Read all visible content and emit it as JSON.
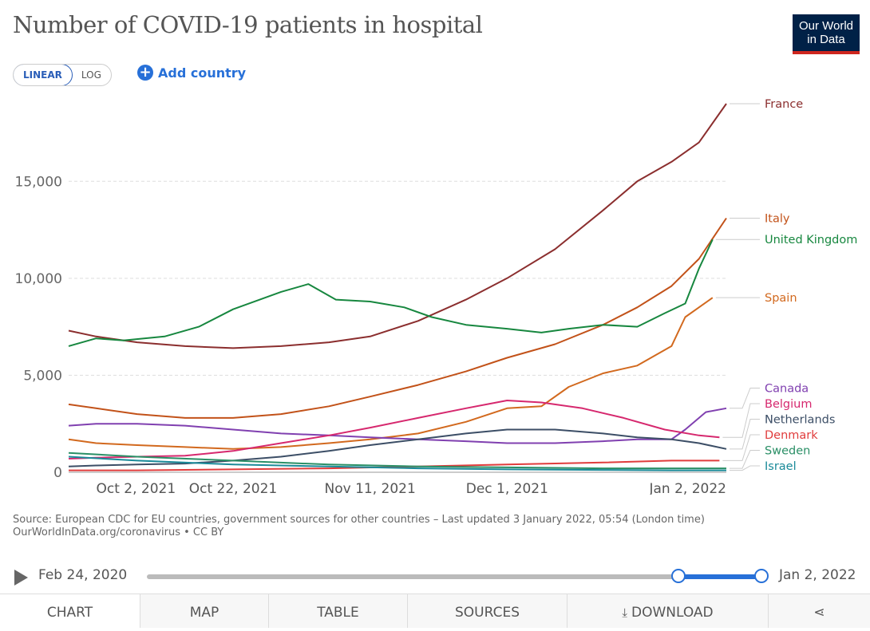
{
  "header": {
    "title": "Number of COVID-19 patients in hospital",
    "logo_line1": "Our World",
    "logo_line2": "in Data"
  },
  "controls": {
    "linear_label": "LINEAR",
    "log_label": "LOG",
    "add_country_label": "Add country"
  },
  "footer": {
    "source_line1": "Source: European CDC for EU countries, government sources for other countries – Last updated 3 January 2022, 05:54 (London time)",
    "source_line2": "OurWorldInData.org/coronavirus • CC BY"
  },
  "timeline": {
    "start_label": "Feb 24, 2020",
    "end_label": "Jan 2, 2022",
    "selection_start_fraction": 0.87,
    "selection_end_fraction": 1.0
  },
  "tabs": [
    "CHART",
    "MAP",
    "TABLE",
    "SOURCES",
    "DOWNLOAD"
  ],
  "icons": {
    "share": "share-icon",
    "download": "download-icon",
    "play": "play-icon"
  },
  "colors": {
    "accent": "#2770d8",
    "logo_bg": "#002147",
    "logo_bar": "#ce261e"
  },
  "chart_data": {
    "type": "line",
    "y_ticks": [
      0,
      5000,
      10000,
      15000
    ],
    "y_tick_labels": [
      "0",
      "5,000",
      "10,000",
      "15,000"
    ],
    "x_ticks": [
      "2021-10-02",
      "2021-10-22",
      "2021-11-11",
      "2021-12-01",
      "2022-01-02"
    ],
    "x_tick_labels": [
      "Oct 2, 2021",
      "Oct 22, 2021",
      "Nov 11, 2021",
      "Dec 1, 2021",
      "Jan 2, 2022"
    ],
    "x_range": [
      "2021-09-28",
      "2022-01-02"
    ],
    "ylim": [
      0,
      19000
    ],
    "grid": true,
    "legend": "right",
    "series": [
      {
        "name": "France",
        "color": "#8b2e2e",
        "end_value": 19000,
        "dates": [
          "2021-09-28",
          "2021-10-02",
          "2021-10-08",
          "2021-10-15",
          "2021-10-22",
          "2021-10-29",
          "2021-11-05",
          "2021-11-11",
          "2021-11-18",
          "2021-11-25",
          "2021-12-01",
          "2021-12-08",
          "2021-12-15",
          "2021-12-20",
          "2021-12-25",
          "2021-12-29",
          "2022-01-02"
        ],
        "values": [
          7300,
          7000,
          6700,
          6500,
          6400,
          6500,
          6700,
          7000,
          7800,
          8900,
          10000,
          11500,
          13500,
          15000,
          16000,
          17000,
          19000
        ]
      },
      {
        "name": "Italy",
        "color": "#c25219",
        "end_value": 13100,
        "dates": [
          "2021-09-28",
          "2021-10-02",
          "2021-10-08",
          "2021-10-15",
          "2021-10-22",
          "2021-10-29",
          "2021-11-05",
          "2021-11-11",
          "2021-11-18",
          "2021-11-25",
          "2021-12-01",
          "2021-12-08",
          "2021-12-15",
          "2021-12-20",
          "2021-12-25",
          "2021-12-29",
          "2022-01-02"
        ],
        "values": [
          3500,
          3300,
          3000,
          2800,
          2800,
          3000,
          3400,
          3900,
          4500,
          5200,
          5900,
          6600,
          7600,
          8500,
          9600,
          11000,
          13100
        ]
      },
      {
        "name": "United Kingdom",
        "color": "#17873f",
        "end_value": 12000,
        "dates": [
          "2021-09-28",
          "2021-10-02",
          "2021-10-06",
          "2021-10-12",
          "2021-10-17",
          "2021-10-22",
          "2021-10-29",
          "2021-11-02",
          "2021-11-06",
          "2021-11-11",
          "2021-11-16",
          "2021-11-20",
          "2021-11-25",
          "2021-12-01",
          "2021-12-06",
          "2021-12-10",
          "2021-12-15",
          "2021-12-20",
          "2021-12-24",
          "2021-12-27",
          "2021-12-29",
          "2021-12-31"
        ],
        "values": [
          6500,
          6900,
          6800,
          7000,
          7500,
          8400,
          9300,
          9700,
          8900,
          8800,
          8500,
          8000,
          7600,
          7400,
          7200,
          7400,
          7600,
          7500,
          8200,
          8700,
          10500,
          12000
        ]
      },
      {
        "name": "Spain",
        "color": "#d2691e",
        "end_value": 9000,
        "dates": [
          "2021-09-28",
          "2021-10-02",
          "2021-10-08",
          "2021-10-15",
          "2021-10-22",
          "2021-10-29",
          "2021-11-05",
          "2021-11-11",
          "2021-11-18",
          "2021-11-25",
          "2021-12-01",
          "2021-12-06",
          "2021-12-10",
          "2021-12-15",
          "2021-12-20",
          "2021-12-25",
          "2021-12-27",
          "2021-12-29",
          "2021-12-31"
        ],
        "values": [
          1700,
          1500,
          1400,
          1300,
          1200,
          1300,
          1500,
          1700,
          2000,
          2600,
          3300,
          3400,
          4400,
          5100,
          5500,
          6500,
          8000,
          8500,
          9000
        ]
      },
      {
        "name": "Canada",
        "color": "#8040b0",
        "end_value": 3300,
        "dates": [
          "2021-09-28",
          "2021-10-02",
          "2021-10-08",
          "2021-10-15",
          "2021-10-22",
          "2021-10-29",
          "2021-11-05",
          "2021-11-11",
          "2021-11-18",
          "2021-11-25",
          "2021-12-01",
          "2021-12-08",
          "2021-12-15",
          "2021-12-20",
          "2021-12-25",
          "2021-12-27",
          "2021-12-30",
          "2022-01-02"
        ],
        "values": [
          2400,
          2500,
          2500,
          2400,
          2200,
          2000,
          1900,
          1800,
          1700,
          1600,
          1500,
          1500,
          1600,
          1700,
          1700,
          2200,
          3100,
          3300
        ]
      },
      {
        "name": "Belgium",
        "color": "#d6286e",
        "end_value": 1800,
        "dates": [
          "2021-09-28",
          "2021-10-02",
          "2021-10-08",
          "2021-10-15",
          "2021-10-22",
          "2021-10-29",
          "2021-11-05",
          "2021-11-11",
          "2021-11-18",
          "2021-11-25",
          "2021-12-01",
          "2021-12-06",
          "2021-12-12",
          "2021-12-18",
          "2021-12-24",
          "2021-12-29",
          "2022-01-01"
        ],
        "values": [
          700,
          750,
          800,
          850,
          1100,
          1500,
          1900,
          2300,
          2800,
          3300,
          3700,
          3600,
          3300,
          2800,
          2200,
          1900,
          1800
        ]
      },
      {
        "name": "Netherlands",
        "color": "#3c4e66",
        "end_value": 1200,
        "dates": [
          "2021-09-28",
          "2021-10-02",
          "2021-10-08",
          "2021-10-15",
          "2021-10-22",
          "2021-10-29",
          "2021-11-05",
          "2021-11-11",
          "2021-11-18",
          "2021-11-25",
          "2021-12-01",
          "2021-12-08",
          "2021-12-15",
          "2021-12-20",
          "2021-12-25",
          "2021-12-29",
          "2022-01-02"
        ],
        "values": [
          300,
          350,
          400,
          450,
          600,
          800,
          1100,
          1400,
          1700,
          2000,
          2200,
          2200,
          2000,
          1800,
          1700,
          1500,
          1200
        ]
      },
      {
        "name": "Denmark",
        "color": "#e03c3c",
        "end_value": 600,
        "dates": [
          "2021-09-28",
          "2021-10-08",
          "2021-10-22",
          "2021-11-05",
          "2021-11-18",
          "2021-12-01",
          "2021-12-15",
          "2021-12-25",
          "2022-01-01"
        ],
        "values": [
          100,
          100,
          150,
          200,
          300,
          400,
          500,
          600,
          600
        ]
      },
      {
        "name": "Sweden",
        "color": "#2a8f66",
        "end_value": 200,
        "dates": [
          "2021-09-28",
          "2021-10-08",
          "2021-10-22",
          "2021-11-05",
          "2021-11-18",
          "2021-12-01",
          "2021-12-15",
          "2021-12-25",
          "2022-01-02"
        ],
        "values": [
          1000,
          800,
          600,
          400,
          300,
          250,
          200,
          200,
          200
        ]
      },
      {
        "name": "Israel",
        "color": "#1a8a99",
        "end_value": 100,
        "dates": [
          "2021-09-28",
          "2021-10-08",
          "2021-10-22",
          "2021-11-05",
          "2021-11-18",
          "2021-12-01",
          "2021-12-15",
          "2021-12-25",
          "2022-01-02"
        ],
        "values": [
          800,
          600,
          400,
          300,
          200,
          150,
          120,
          100,
          100
        ]
      }
    ]
  }
}
